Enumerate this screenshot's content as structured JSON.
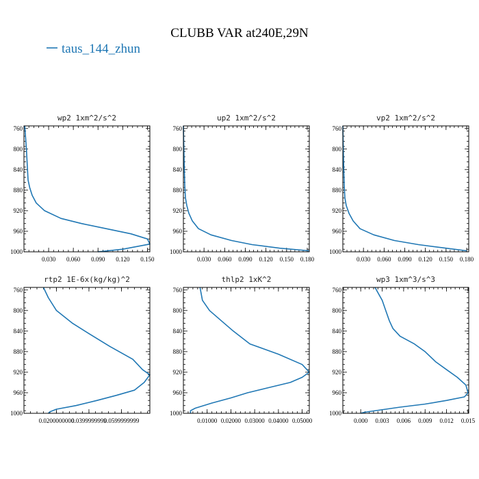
{
  "figure": {
    "title": "CLUBB VAR at240E,29N",
    "legend": [
      {
        "label": "taus_144_zhun",
        "color": "#1f77b4"
      }
    ]
  },
  "chart_data": [
    {
      "type": "line",
      "title": "wp2  1xm^2/s^2",
      "xlim": [
        0.0,
        0.153
      ],
      "ylim": [
        1000,
        755
      ],
      "y_inverted": true,
      "xticks": [
        0.03,
        0.06,
        0.09,
        0.12,
        0.15
      ],
      "xtick_labels": [
        "0.030",
        "0.060",
        "0.090",
        "0.120",
        "0.150"
      ],
      "yticks": [
        760,
        800,
        840,
        880,
        920,
        960,
        1000
      ],
      "ytick_labels": [
        "760",
        "800",
        "840",
        "880",
        "920",
        "960",
        "1000"
      ],
      "series": [
        {
          "color": "#1f77b4",
          "x": [
            0.001,
            0.003,
            0.004,
            0.005,
            0.007,
            0.01,
            0.015,
            0.025,
            0.045,
            0.07,
            0.1,
            0.13,
            0.15,
            0.153,
            0.12,
            0.09
          ],
          "y": [
            755,
            800,
            830,
            860,
            875,
            890,
            905,
            920,
            935,
            945,
            955,
            965,
            975,
            985,
            995,
            1000
          ]
        }
      ]
    },
    {
      "type": "line",
      "title": "up2  1xm^2/s^2",
      "xlim": [
        0.0,
        0.183
      ],
      "ylim": [
        1000,
        755
      ],
      "y_inverted": true,
      "xticks": [
        0.03,
        0.06,
        0.09,
        0.12,
        0.15,
        0.18
      ],
      "xtick_labels": [
        "0.030",
        "0.060",
        "0.090",
        "0.120",
        "0.150",
        "0.180"
      ],
      "yticks": [
        760,
        800,
        840,
        880,
        920,
        960,
        1000
      ],
      "ytick_labels": [
        "760",
        "800",
        "840",
        "880",
        "920",
        "960",
        "1000"
      ],
      "series": [
        {
          "color": "#1f77b4",
          "x": [
            0.0,
            0.001,
            0.002,
            0.003,
            0.005,
            0.008,
            0.013,
            0.022,
            0.04,
            0.07,
            0.1,
            0.14,
            0.183
          ],
          "y": [
            755,
            820,
            870,
            895,
            910,
            925,
            940,
            955,
            967,
            978,
            986,
            993,
            998
          ]
        }
      ]
    },
    {
      "type": "line",
      "title": "vp2  1xm^2/s^2",
      "xlim": [
        0.0,
        0.183
      ],
      "ylim": [
        1000,
        755
      ],
      "y_inverted": true,
      "xticks": [
        0.03,
        0.06,
        0.09,
        0.12,
        0.15,
        0.18
      ],
      "xtick_labels": [
        "0.030",
        "0.060",
        "0.090",
        "0.120",
        "0.150",
        "0.180"
      ],
      "yticks": [
        760,
        800,
        840,
        880,
        920,
        960,
        1000
      ],
      "ytick_labels": [
        "760",
        "800",
        "840",
        "880",
        "920",
        "960",
        "1000"
      ],
      "series": [
        {
          "color": "#1f77b4",
          "x": [
            0.0,
            0.001,
            0.002,
            0.003,
            0.005,
            0.009,
            0.015,
            0.025,
            0.045,
            0.075,
            0.11,
            0.15,
            0.18
          ],
          "y": [
            755,
            820,
            870,
            895,
            910,
            925,
            940,
            955,
            967,
            978,
            986,
            993,
            998
          ]
        }
      ]
    },
    {
      "type": "line",
      "title": "rtp2  1E-6x(kg/kg)^2",
      "xlim": [
        0.0,
        0.0775
      ],
      "ylim": [
        1000,
        755
      ],
      "y_inverted": true,
      "xticks": [
        0.02,
        0.04,
        0.06
      ],
      "xtick_labels": [
        "0.0200000000",
        "0.0399999999",
        "0.0599999999"
      ],
      "yticks": [
        760,
        800,
        840,
        880,
        920,
        960,
        1000
      ],
      "ytick_labels": [
        "760",
        "800",
        "840",
        "880",
        "920",
        "960",
        "1000"
      ],
      "series": [
        {
          "color": "#1f77b4",
          "x": [
            0.012,
            0.015,
            0.02,
            0.03,
            0.04,
            0.053,
            0.067,
            0.073,
            0.0775,
            0.074,
            0.068,
            0.057,
            0.045,
            0.032,
            0.02,
            0.016,
            0.015
          ],
          "y": [
            755,
            775,
            800,
            825,
            845,
            870,
            895,
            915,
            925,
            940,
            955,
            965,
            975,
            985,
            992,
            997,
            1000
          ]
        }
      ]
    },
    {
      "type": "line",
      "title": "thlp2  1xK^2",
      "xlim": [
        0.0,
        0.053
      ],
      "ylim": [
        1000,
        755
      ],
      "y_inverted": true,
      "xticks": [
        0.01,
        0.02,
        0.03,
        0.04,
        0.05
      ],
      "xtick_labels": [
        "0.01000",
        "0.02000",
        "0.03000",
        "0.04000",
        "0.05000"
      ],
      "yticks": [
        760,
        800,
        840,
        880,
        920,
        960,
        1000
      ],
      "ytick_labels": [
        "760",
        "800",
        "840",
        "880",
        "920",
        "960",
        "1000"
      ],
      "series": [
        {
          "color": "#1f77b4",
          "x": [
            0.007,
            0.008,
            0.011,
            0.016,
            0.021,
            0.028,
            0.04,
            0.05,
            0.053,
            0.05,
            0.045,
            0.036,
            0.027,
            0.02,
            0.012,
            0.005,
            0.003,
            0.003
          ],
          "y": [
            755,
            780,
            800,
            820,
            840,
            865,
            885,
            905,
            920,
            930,
            940,
            950,
            960,
            970,
            980,
            990,
            995,
            1000
          ]
        }
      ]
    },
    {
      "type": "line",
      "title": "wp3  1xm^3/s^3",
      "xlim": [
        -0.0025,
        0.0151
      ],
      "ylim": [
        1000,
        755
      ],
      "y_inverted": true,
      "xticks": [
        0.0,
        0.003,
        0.006,
        0.009,
        0.012,
        0.015
      ],
      "xtick_labels": [
        "0.000",
        "0.003",
        "0.006",
        "0.009",
        "0.012",
        "0.015"
      ],
      "yticks": [
        760,
        800,
        840,
        880,
        920,
        960,
        1000
      ],
      "ytick_labels": [
        "760",
        "800",
        "840",
        "880",
        "920",
        "960",
        "1000"
      ],
      "series": [
        {
          "color": "#1f77b4",
          "x": [
            0.002,
            0.003,
            0.0035,
            0.004,
            0.0045,
            0.0055,
            0.0075,
            0.009,
            0.0105,
            0.012,
            0.0135,
            0.0147,
            0.015,
            0.0145,
            0.012,
            0.009,
            0.0055,
            0.0025,
            0.0005,
            0.0
          ],
          "y": [
            755,
            780,
            800,
            820,
            835,
            850,
            865,
            880,
            900,
            915,
            930,
            945,
            960,
            968,
            975,
            982,
            988,
            994,
            998,
            1000
          ]
        }
      ]
    }
  ]
}
